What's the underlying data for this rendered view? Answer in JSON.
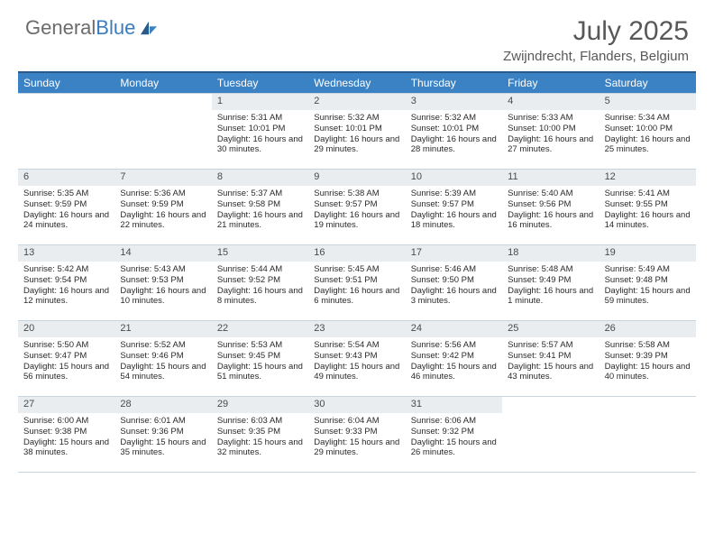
{
  "logo": {
    "part1": "General",
    "part2": "Blue"
  },
  "title": "July 2025",
  "location": "Zwijndrecht, Flanders, Belgium",
  "colors": {
    "headerBg": "#3b82c4",
    "headerTopBorder": "#2a5a8a",
    "dayNumBg": "#e9edf0",
    "cellBorder": "#c8d4de",
    "logoGray": "#6b6b6b",
    "logoBlue": "#3b7bbf",
    "titleGray": "#585858"
  },
  "layout": {
    "startOffset": 2,
    "trailingEmpty": 2
  },
  "weekdays": [
    "Sunday",
    "Monday",
    "Tuesday",
    "Wednesday",
    "Thursday",
    "Friday",
    "Saturday"
  ],
  "days": [
    {
      "n": 1,
      "sunrise": "5:31 AM",
      "sunset": "10:01 PM",
      "daylight": "16 hours and 30 minutes."
    },
    {
      "n": 2,
      "sunrise": "5:32 AM",
      "sunset": "10:01 PM",
      "daylight": "16 hours and 29 minutes."
    },
    {
      "n": 3,
      "sunrise": "5:32 AM",
      "sunset": "10:01 PM",
      "daylight": "16 hours and 28 minutes."
    },
    {
      "n": 4,
      "sunrise": "5:33 AM",
      "sunset": "10:00 PM",
      "daylight": "16 hours and 27 minutes."
    },
    {
      "n": 5,
      "sunrise": "5:34 AM",
      "sunset": "10:00 PM",
      "daylight": "16 hours and 25 minutes."
    },
    {
      "n": 6,
      "sunrise": "5:35 AM",
      "sunset": "9:59 PM",
      "daylight": "16 hours and 24 minutes."
    },
    {
      "n": 7,
      "sunrise": "5:36 AM",
      "sunset": "9:59 PM",
      "daylight": "16 hours and 22 minutes."
    },
    {
      "n": 8,
      "sunrise": "5:37 AM",
      "sunset": "9:58 PM",
      "daylight": "16 hours and 21 minutes."
    },
    {
      "n": 9,
      "sunrise": "5:38 AM",
      "sunset": "9:57 PM",
      "daylight": "16 hours and 19 minutes."
    },
    {
      "n": 10,
      "sunrise": "5:39 AM",
      "sunset": "9:57 PM",
      "daylight": "16 hours and 18 minutes."
    },
    {
      "n": 11,
      "sunrise": "5:40 AM",
      "sunset": "9:56 PM",
      "daylight": "16 hours and 16 minutes."
    },
    {
      "n": 12,
      "sunrise": "5:41 AM",
      "sunset": "9:55 PM",
      "daylight": "16 hours and 14 minutes."
    },
    {
      "n": 13,
      "sunrise": "5:42 AM",
      "sunset": "9:54 PM",
      "daylight": "16 hours and 12 minutes."
    },
    {
      "n": 14,
      "sunrise": "5:43 AM",
      "sunset": "9:53 PM",
      "daylight": "16 hours and 10 minutes."
    },
    {
      "n": 15,
      "sunrise": "5:44 AM",
      "sunset": "9:52 PM",
      "daylight": "16 hours and 8 minutes."
    },
    {
      "n": 16,
      "sunrise": "5:45 AM",
      "sunset": "9:51 PM",
      "daylight": "16 hours and 6 minutes."
    },
    {
      "n": 17,
      "sunrise": "5:46 AM",
      "sunset": "9:50 PM",
      "daylight": "16 hours and 3 minutes."
    },
    {
      "n": 18,
      "sunrise": "5:48 AM",
      "sunset": "9:49 PM",
      "daylight": "16 hours and 1 minute."
    },
    {
      "n": 19,
      "sunrise": "5:49 AM",
      "sunset": "9:48 PM",
      "daylight": "15 hours and 59 minutes."
    },
    {
      "n": 20,
      "sunrise": "5:50 AM",
      "sunset": "9:47 PM",
      "daylight": "15 hours and 56 minutes."
    },
    {
      "n": 21,
      "sunrise": "5:52 AM",
      "sunset": "9:46 PM",
      "daylight": "15 hours and 54 minutes."
    },
    {
      "n": 22,
      "sunrise": "5:53 AM",
      "sunset": "9:45 PM",
      "daylight": "15 hours and 51 minutes."
    },
    {
      "n": 23,
      "sunrise": "5:54 AM",
      "sunset": "9:43 PM",
      "daylight": "15 hours and 49 minutes."
    },
    {
      "n": 24,
      "sunrise": "5:56 AM",
      "sunset": "9:42 PM",
      "daylight": "15 hours and 46 minutes."
    },
    {
      "n": 25,
      "sunrise": "5:57 AM",
      "sunset": "9:41 PM",
      "daylight": "15 hours and 43 minutes."
    },
    {
      "n": 26,
      "sunrise": "5:58 AM",
      "sunset": "9:39 PM",
      "daylight": "15 hours and 40 minutes."
    },
    {
      "n": 27,
      "sunrise": "6:00 AM",
      "sunset": "9:38 PM",
      "daylight": "15 hours and 38 minutes."
    },
    {
      "n": 28,
      "sunrise": "6:01 AM",
      "sunset": "9:36 PM",
      "daylight": "15 hours and 35 minutes."
    },
    {
      "n": 29,
      "sunrise": "6:03 AM",
      "sunset": "9:35 PM",
      "daylight": "15 hours and 32 minutes."
    },
    {
      "n": 30,
      "sunrise": "6:04 AM",
      "sunset": "9:33 PM",
      "daylight": "15 hours and 29 minutes."
    },
    {
      "n": 31,
      "sunrise": "6:06 AM",
      "sunset": "9:32 PM",
      "daylight": "15 hours and 26 minutes."
    }
  ],
  "labels": {
    "sunrise": "Sunrise:",
    "sunset": "Sunset:",
    "daylight": "Daylight:"
  }
}
